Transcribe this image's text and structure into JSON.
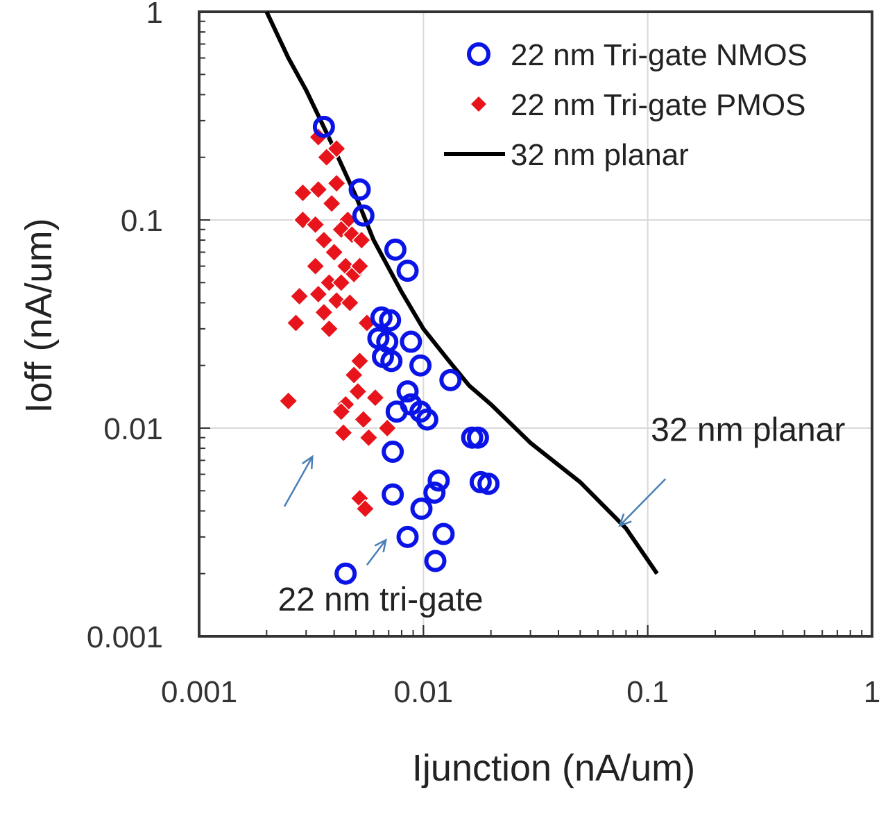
{
  "chart_data": {
    "type": "scatter",
    "xlabel": "Ijunction (nA/um)",
    "ylabel": "Ioff  (nA/um)",
    "xscale": "log",
    "yscale": "log",
    "xlim": [
      0.001,
      1
    ],
    "ylim": [
      0.001,
      1
    ],
    "grid": true,
    "legend_position": "top-right",
    "x_ticks": [
      {
        "value": 0.001,
        "label": "0.001"
      },
      {
        "value": 0.01,
        "label": "0.01"
      },
      {
        "value": 0.1,
        "label": "0.1"
      },
      {
        "value": 1,
        "label": "1"
      }
    ],
    "y_ticks": [
      {
        "value": 0.001,
        "label": "0.001"
      },
      {
        "value": 0.01,
        "label": "0.01"
      },
      {
        "value": 0.1,
        "label": "0.1"
      },
      {
        "value": 1,
        "label": "1"
      }
    ],
    "series": [
      {
        "name": "22 nm Tri-gate NMOS",
        "type": "scatter",
        "marker": "open-circle",
        "color": "#0a14e6",
        "points": [
          [
            0.0036,
            0.28
          ],
          [
            0.0052,
            0.14
          ],
          [
            0.0054,
            0.105
          ],
          [
            0.0075,
            0.072
          ],
          [
            0.0085,
            0.057
          ],
          [
            0.0065,
            0.034
          ],
          [
            0.0071,
            0.033
          ],
          [
            0.0063,
            0.027
          ],
          [
            0.0069,
            0.026
          ],
          [
            0.0088,
            0.026
          ],
          [
            0.0066,
            0.022
          ],
          [
            0.0072,
            0.021
          ],
          [
            0.0097,
            0.02
          ],
          [
            0.0132,
            0.017
          ],
          [
            0.0085,
            0.015
          ],
          [
            0.0088,
            0.013
          ],
          [
            0.0076,
            0.012
          ],
          [
            0.0097,
            0.012
          ],
          [
            0.0104,
            0.011
          ],
          [
            0.0165,
            0.009
          ],
          [
            0.0175,
            0.009
          ],
          [
            0.0073,
            0.0077
          ],
          [
            0.0117,
            0.0056
          ],
          [
            0.018,
            0.0055
          ],
          [
            0.0195,
            0.0054
          ],
          [
            0.0073,
            0.0048
          ],
          [
            0.0112,
            0.0049
          ],
          [
            0.0098,
            0.0041
          ],
          [
            0.0085,
            0.003
          ],
          [
            0.0123,
            0.0031
          ],
          [
            0.0113,
            0.0023
          ],
          [
            0.0045,
            0.002
          ]
        ]
      },
      {
        "name": "22 nm Tri-gate PMOS",
        "type": "scatter",
        "marker": "filled-diamond",
        "color": "#e8141c",
        "points": [
          [
            0.0034,
            0.25
          ],
          [
            0.0041,
            0.22
          ],
          [
            0.0037,
            0.2
          ],
          [
            0.0041,
            0.15
          ],
          [
            0.0029,
            0.135
          ],
          [
            0.0034,
            0.14
          ],
          [
            0.0039,
            0.12
          ],
          [
            0.0046,
            0.1
          ],
          [
            0.0029,
            0.1
          ],
          [
            0.0033,
            0.095
          ],
          [
            0.0043,
            0.09
          ],
          [
            0.0048,
            0.085
          ],
          [
            0.0053,
            0.08
          ],
          [
            0.0036,
            0.08
          ],
          [
            0.004,
            0.07
          ],
          [
            0.0033,
            0.06
          ],
          [
            0.0045,
            0.06
          ],
          [
            0.0049,
            0.055
          ],
          [
            0.0052,
            0.06
          ],
          [
            0.0038,
            0.05
          ],
          [
            0.0043,
            0.05
          ],
          [
            0.0028,
            0.043
          ],
          [
            0.0034,
            0.044
          ],
          [
            0.0041,
            0.041
          ],
          [
            0.0047,
            0.04
          ],
          [
            0.0036,
            0.036
          ],
          [
            0.0027,
            0.032
          ],
          [
            0.0038,
            0.03
          ],
          [
            0.0056,
            0.032
          ],
          [
            0.0052,
            0.021
          ],
          [
            0.0049,
            0.018
          ],
          [
            0.0051,
            0.015
          ],
          [
            0.0045,
            0.013
          ],
          [
            0.0061,
            0.014
          ],
          [
            0.0025,
            0.0135
          ],
          [
            0.0043,
            0.012
          ],
          [
            0.0054,
            0.011
          ],
          [
            0.0069,
            0.01
          ],
          [
            0.0044,
            0.0095
          ],
          [
            0.0057,
            0.009
          ],
          [
            0.0052,
            0.0046
          ],
          [
            0.0055,
            0.0041
          ]
        ]
      },
      {
        "name": "32 nm planar",
        "type": "line",
        "color": "#000000",
        "points": [
          [
            0.002,
            1
          ],
          [
            0.0025,
            0.6
          ],
          [
            0.003,
            0.42
          ],
          [
            0.004,
            0.22
          ],
          [
            0.005,
            0.13
          ],
          [
            0.006,
            0.08
          ],
          [
            0.008,
            0.045
          ],
          [
            0.01,
            0.03
          ],
          [
            0.013,
            0.021
          ],
          [
            0.016,
            0.016
          ],
          [
            0.02,
            0.013
          ],
          [
            0.03,
            0.0085
          ],
          [
            0.05,
            0.0055
          ],
          [
            0.08,
            0.0033
          ],
          [
            0.11,
            0.002
          ]
        ]
      }
    ],
    "annotations": [
      {
        "text": "32 nm  planar",
        "x": 0.28,
        "y": 0.0098,
        "arrow_from": [
          0.12,
          0.0057
        ],
        "arrow_to": [
          0.075,
          0.0034
        ]
      },
      {
        "text": "22 nm tri-gate",
        "x": 0.0042,
        "y": 0.0015,
        "arrows": [
          [
            [
              0.0024,
              0.0042
            ],
            [
              0.0032,
              0.0073
            ]
          ],
          [
            [
              0.0056,
              0.0022
            ],
            [
              0.0068,
              0.0029
            ]
          ]
        ]
      }
    ]
  }
}
